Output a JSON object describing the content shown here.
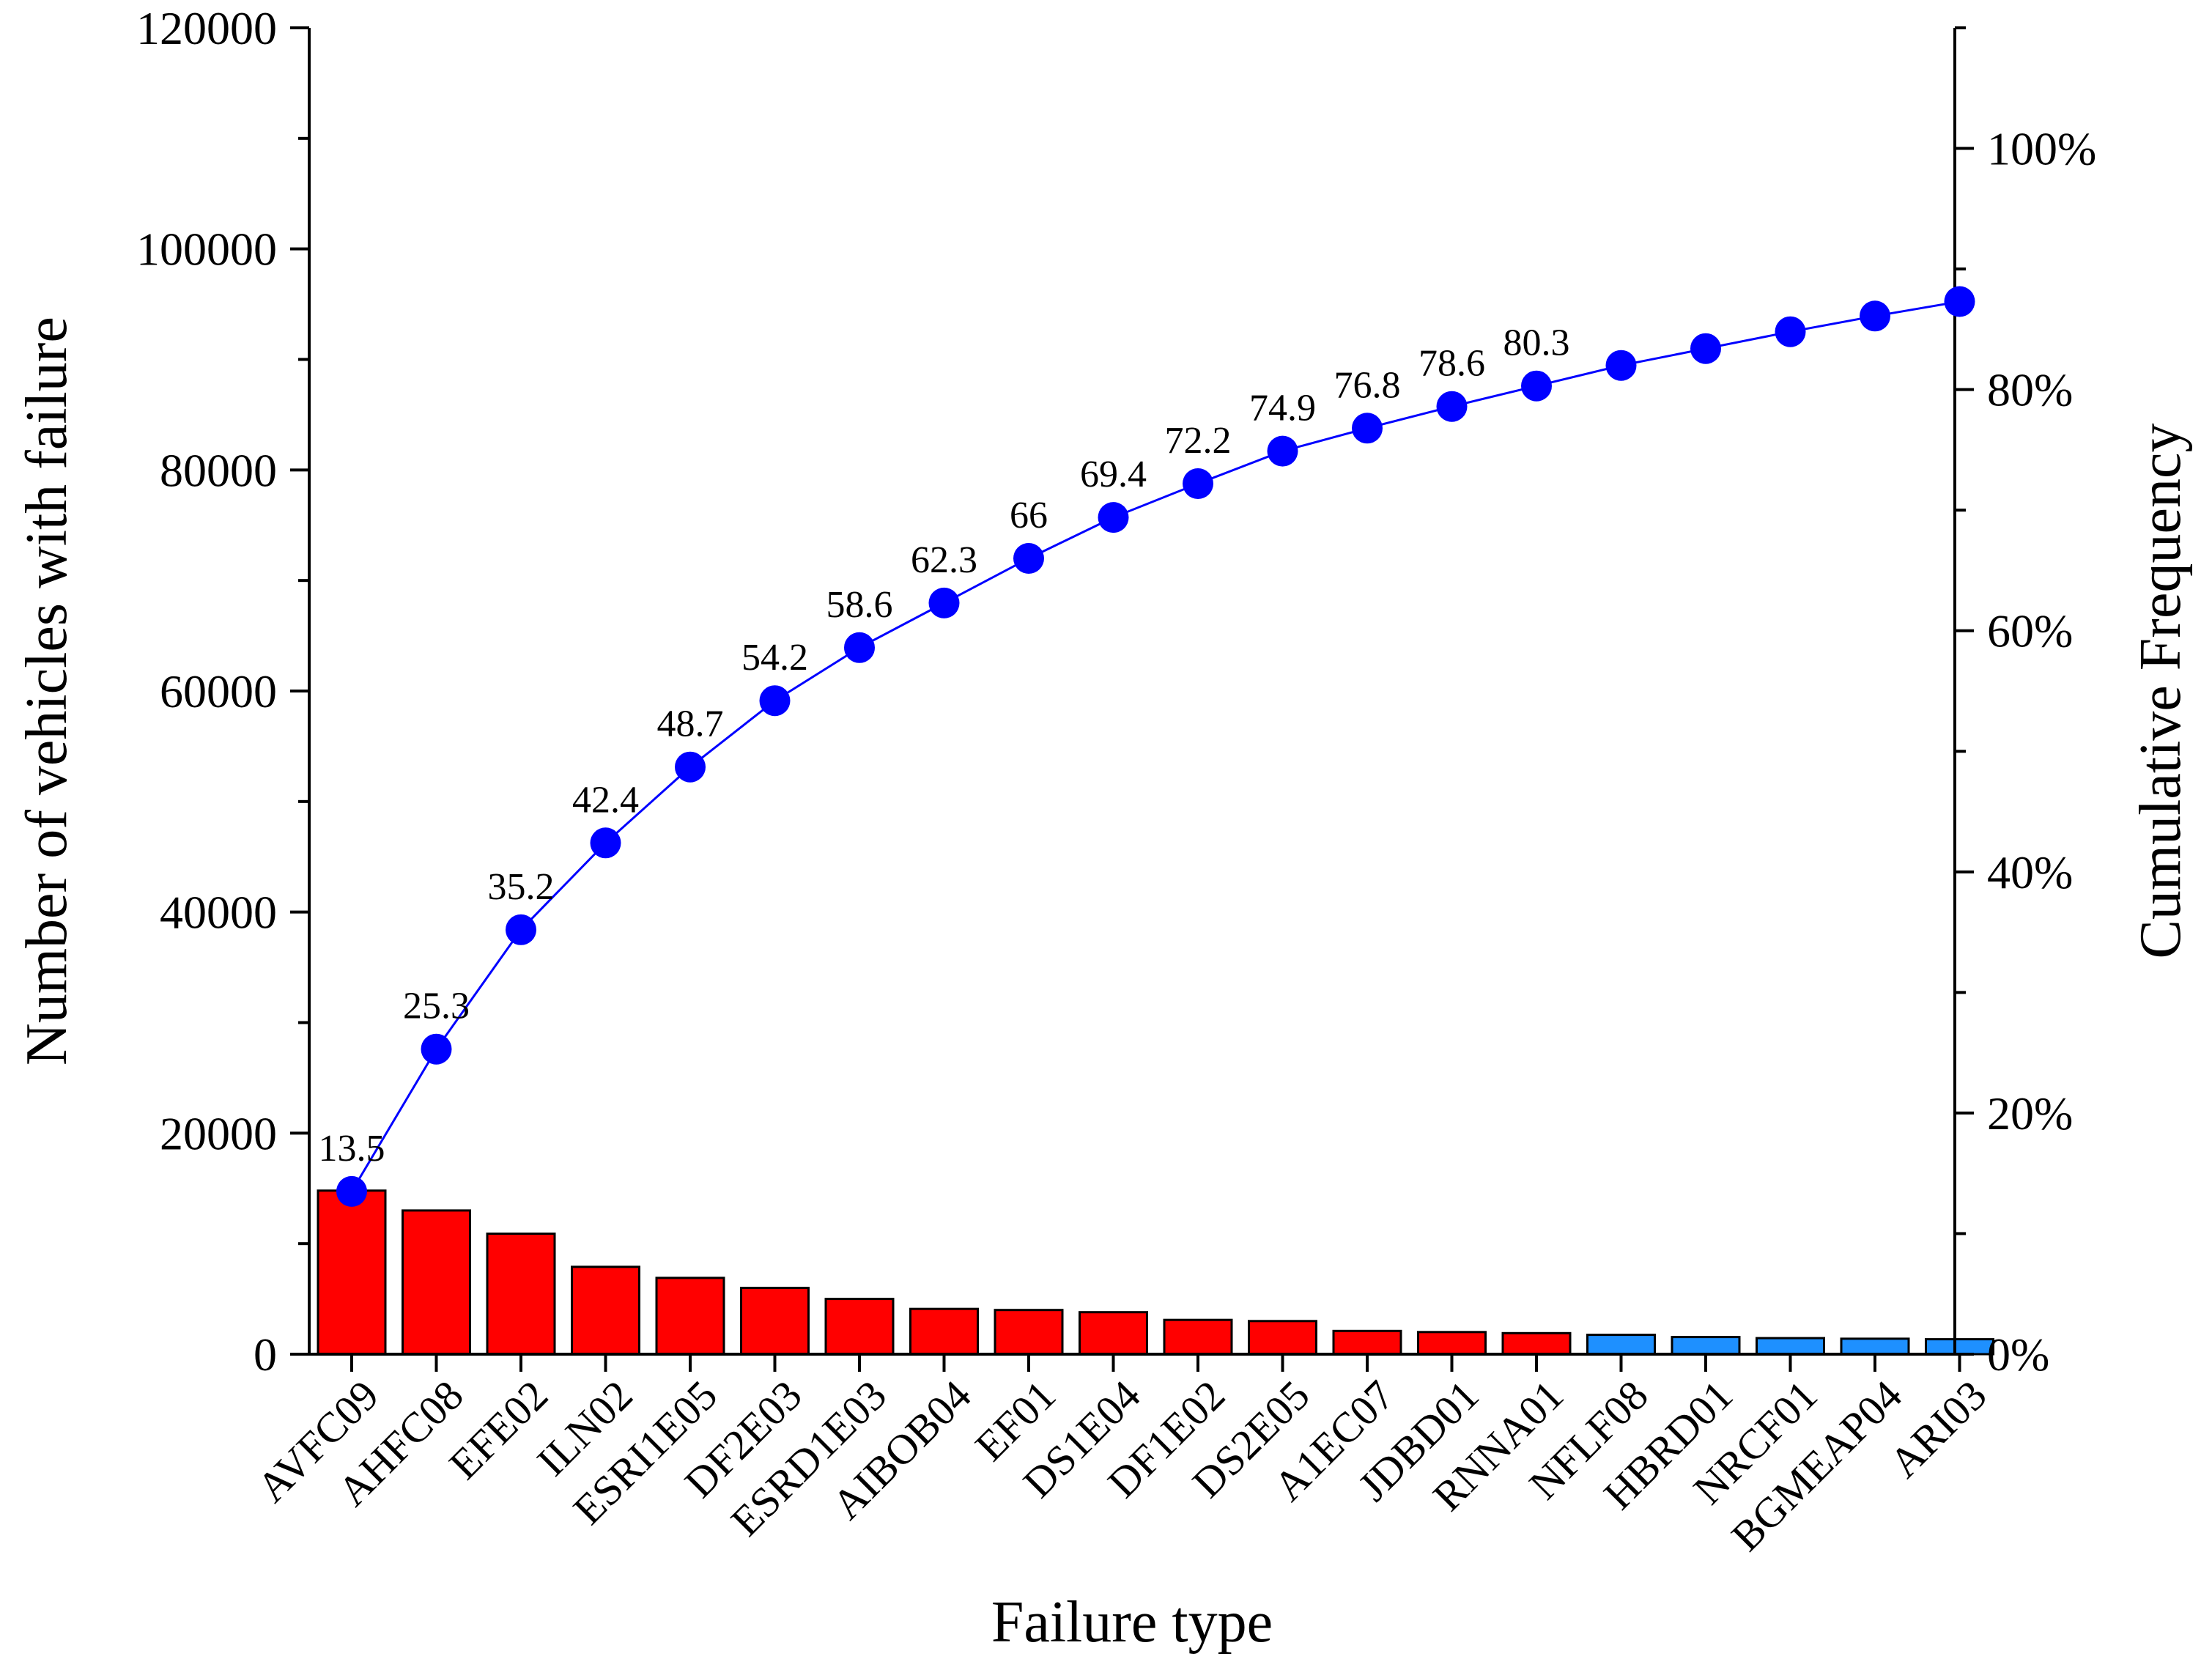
{
  "chart_data": {
    "type": "bar",
    "combo": "pareto",
    "xlabel": "Failure type",
    "ylabel": "Number of vehicles with failure",
    "y2label": "Cumulative Frequency",
    "ylim": [
      0,
      120000
    ],
    "y2lim": [
      0,
      110
    ],
    "yticks": [
      "0",
      "20000",
      "40000",
      "60000",
      "80000",
      "100000",
      "120000"
    ],
    "y2ticks": [
      "0%",
      "20%",
      "40%",
      "60%",
      "80%",
      "100%"
    ],
    "categories": [
      "AVFC09",
      "AHFC08",
      "EFE02",
      "ILN02",
      "ESRI1E05",
      "DF2E03",
      "ESRD1E03",
      "AIBOB04",
      "EF01",
      "DS1E04",
      "DF1E02",
      "DS2E05",
      "A1EC07",
      "JDBD01",
      "RNNA01",
      "NFLF08",
      "HBRD01",
      "NRCF01",
      "BGMEAP04",
      "ARI03"
    ],
    "series": [
      {
        "name": "Number of vehicles with failure",
        "axis": "left",
        "values": [
          14800,
          13000,
          10900,
          7900,
          6900,
          6000,
          5000,
          4100,
          4000,
          3800,
          3100,
          3000,
          2100,
          2000,
          1900,
          1750,
          1550,
          1450,
          1400,
          1350
        ],
        "colors": [
          "#ff0000",
          "#ff0000",
          "#ff0000",
          "#ff0000",
          "#ff0000",
          "#ff0000",
          "#ff0000",
          "#ff0000",
          "#ff0000",
          "#ff0000",
          "#ff0000",
          "#ff0000",
          "#ff0000",
          "#ff0000",
          "#ff0000",
          "#1e90ff",
          "#1e90ff",
          "#1e90ff",
          "#1e90ff",
          "#1e90ff"
        ]
      },
      {
        "name": "Cumulative Frequency",
        "axis": "right",
        "type": "line",
        "values": [
          13.5,
          25.3,
          35.2,
          42.4,
          48.7,
          54.2,
          58.6,
          62.3,
          66,
          69.4,
          72.2,
          74.9,
          76.8,
          78.6,
          80.3,
          82,
          83.4,
          84.8,
          86.1,
          87.3
        ],
        "labels": [
          "13.5",
          "25.3",
          "35.2",
          "42.4",
          "48.7",
          "54.2",
          "58.6",
          "62.3",
          "66",
          "69.4",
          "72.2",
          "74.9",
          "76.8",
          "78.6",
          "80.3",
          "",
          "",
          "",
          "",
          ""
        ],
        "color": "#0000ff"
      }
    ]
  }
}
